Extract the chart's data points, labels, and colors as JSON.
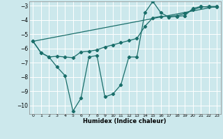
{
  "xlabel": "Humidex (Indice chaleur)",
  "bg_color": "#cce8ec",
  "grid_color": "#ffffff",
  "line_color": "#1a6e6a",
  "xlim": [
    -0.5,
    23.5
  ],
  "ylim": [
    -10.6,
    -2.7
  ],
  "yticks": [
    -10,
    -9,
    -8,
    -7,
    -6,
    -5,
    -4,
    -3
  ],
  "xticks": [
    0,
    1,
    2,
    3,
    4,
    5,
    6,
    7,
    8,
    9,
    10,
    11,
    12,
    13,
    14,
    15,
    16,
    17,
    18,
    19,
    20,
    21,
    22,
    23
  ],
  "line1_x": [
    0,
    1,
    2,
    3,
    4,
    5,
    6,
    7,
    8,
    9,
    10,
    11,
    12,
    13,
    14,
    15,
    16,
    17,
    18,
    19,
    20,
    21,
    22,
    23
  ],
  "line1_y": [
    -5.5,
    -6.3,
    -6.6,
    -7.3,
    -7.9,
    -10.4,
    -9.5,
    -6.6,
    -6.5,
    -9.4,
    -9.2,
    -8.55,
    -6.6,
    -6.6,
    -3.5,
    -2.7,
    -3.5,
    -3.8,
    -3.75,
    -3.7,
    -3.2,
    -3.05,
    -3.1,
    -3.1
  ],
  "line2_x": [
    0,
    1,
    2,
    3,
    4,
    5,
    6,
    7,
    8,
    9,
    10,
    11,
    12,
    13,
    14,
    15,
    16,
    17,
    18,
    19,
    20,
    21,
    22,
    23
  ],
  "line2_y": [
    -5.5,
    -6.3,
    -6.6,
    -6.55,
    -6.6,
    -6.65,
    -6.25,
    -6.2,
    -6.1,
    -5.9,
    -5.75,
    -5.6,
    -5.45,
    -5.3,
    -4.45,
    -3.85,
    -3.75,
    -3.75,
    -3.7,
    -3.55,
    -3.3,
    -3.1,
    -3.05,
    -3.05
  ],
  "line3_x": [
    0,
    23
  ],
  "line3_y": [
    -5.5,
    -3.05
  ],
  "marker": "D",
  "markersize": 2.2,
  "linewidth": 0.9
}
